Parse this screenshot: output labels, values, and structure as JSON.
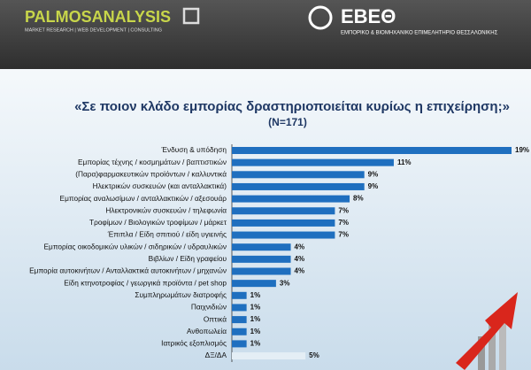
{
  "header": {
    "logo_left": "PALMOSANALYSIS",
    "logo_left_tagline": "MARKET RESEARCH | WEB DEVELOPMENT | CONSULTING",
    "logo_right": "ΕΒΕΘ",
    "logo_right_tagline": "ΕΜΠΟΡΙΚΟ & ΒΙΟΜΗΧΑΝΙΚΟ ΕΠΙΜΕΛΗΤΗΡΙΟ ΘΕΣΣΑΛΟΝΙΚΗΣ"
  },
  "chart_data": {
    "type": "barh",
    "title": "«Σε ποιον κλάδο εμπορίας δραστηριοποιείται κυρίως η επιχείρηση;»",
    "subtitle": "(Ν=171)",
    "categories": [
      "Ένδυση & υπόδηση",
      "Εμπορίας τέχνης / κοσμημάτων / βαπτιστικών",
      "(Παρα)φαρμακευτικών προϊόντων / καλλυντικά",
      "Ηλεκτρικών συσκευών (και ανταλλακτικά)",
      "Εμπορίας αναλωσίμων / ανταλλακτικών / αξεσουάρ",
      "Ηλεκτρονικών συσκευών / τηλεφωνία",
      "Τροφίμων / Βιολογικών τροφίμων / μάρκετ",
      "Έπιπλα / Είδη σπιτιού / είδη υγιεινής",
      "Εμπορίας οικοδομικών υλικών / σιδηρικών / υδραυλικών",
      "Βιβλίων / Είδη γραφείου",
      "Εμπορία αυτοκινήτων / Ανταλλακτικά αυτοκινήτων / μηχανών",
      "Είδη κτηνοτροφίας / γεωργικά προϊόντα / pet shop",
      "Συμπληρωμάτων διατροφής",
      "Παιχνιδιών",
      "Οπτικά",
      "Ανθοπωλεία",
      "Ιατρικός εξοπλισμός",
      "ΔΞ/ΔΑ"
    ],
    "values": [
      19,
      11,
      9,
      9,
      8,
      7,
      7,
      7,
      4,
      4,
      4,
      3,
      1,
      1,
      1,
      1,
      1,
      5
    ],
    "value_labels": [
      "19%",
      "11%",
      "9%",
      "9%",
      "8%",
      "7%",
      "7%",
      "7%",
      "4%",
      "4%",
      "4%",
      "3%",
      "1%",
      "1%",
      "1%",
      "1%",
      "1%",
      "5%"
    ],
    "colors": [
      "#1f6fbf",
      "#1f6fbf",
      "#1f6fbf",
      "#1f6fbf",
      "#1f6fbf",
      "#1f6fbf",
      "#1f6fbf",
      "#1f6fbf",
      "#1f6fbf",
      "#1f6fbf",
      "#1f6fbf",
      "#1f6fbf",
      "#1f6fbf",
      "#1f6fbf",
      "#1f6fbf",
      "#1f6fbf",
      "#1f6fbf",
      "#e4eef5"
    ],
    "xlim": [
      0,
      19
    ]
  }
}
